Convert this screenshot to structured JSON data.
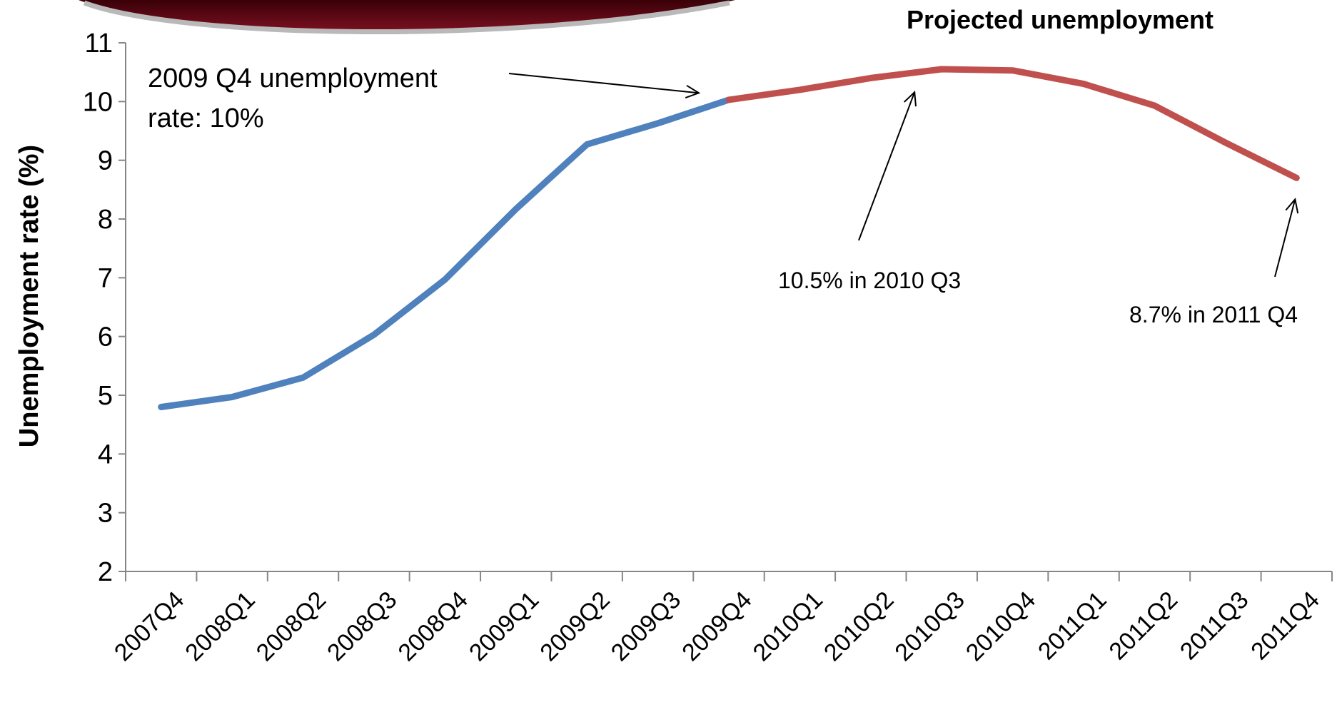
{
  "chart_data": {
    "type": "line",
    "title": "Projected unemployment",
    "xlabel": "",
    "ylabel": "Unemployment rate (%)",
    "ylim": [
      2,
      11
    ],
    "yticks": [
      2,
      3,
      4,
      5,
      6,
      7,
      8,
      9,
      10,
      11
    ],
    "grid": false,
    "categories": [
      "2007Q4",
      "2008Q1",
      "2008Q2",
      "2008Q3",
      "2008Q4",
      "2009Q1",
      "2009Q2",
      "2009Q3",
      "2009Q4",
      "2010Q1",
      "2010Q2",
      "2010Q3",
      "2010Q4",
      "2011Q1",
      "2011Q2",
      "2011Q3",
      "2011Q4"
    ],
    "series": [
      {
        "color": "#4f81bd",
        "values": [
          4.8,
          4.97,
          5.3,
          6.03,
          6.97,
          8.17,
          9.27,
          9.63,
          10.03,
          null,
          null,
          null,
          null,
          null,
          null,
          null,
          null
        ]
      },
      {
        "color": "#c0504d",
        "values": [
          null,
          null,
          null,
          null,
          null,
          null,
          null,
          null,
          10.03,
          10.2,
          10.4,
          10.55,
          10.53,
          10.3,
          9.93,
          9.3,
          8.7
        ]
      }
    ],
    "annotations": [
      {
        "lines": [
          "2009 Q4 unemployment",
          "rate: 10%"
        ],
        "target_category": "2009Q4",
        "target_value": 10.0
      },
      {
        "lines": [
          "10.5% in 2010 Q3"
        ],
        "target_category": "2010Q3",
        "target_value": 10.5
      },
      {
        "lines": [
          "8.7% in 2011 Q4"
        ],
        "target_category": "2011Q4",
        "target_value": 8.7
      }
    ]
  }
}
